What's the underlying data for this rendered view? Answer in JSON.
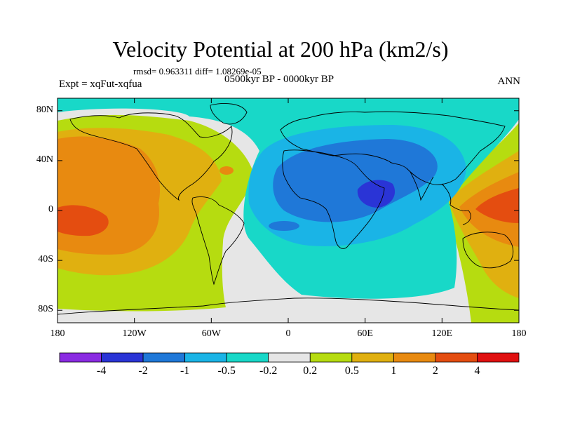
{
  "title": "Velocity Potential at 200 hPa (km2/s)",
  "stats_line": "rmsd= 0.963311 diff= 1.08269e-05",
  "experiment": "Expt = xqFut-xqfua",
  "period": "0500kyr BP - 0000kyr BP",
  "season": "ANN",
  "map": {
    "projection": "cylindrical-equidistant",
    "lon_range": [
      -180,
      180
    ],
    "lat_range": [
      -90,
      90
    ],
    "lat_ticks": [
      {
        "label": "80N",
        "lat": 80
      },
      {
        "label": "40N",
        "lat": 40
      },
      {
        "label": "0",
        "lat": 0
      },
      {
        "label": "40S",
        "lat": -40
      },
      {
        "label": "80S",
        "lat": -80
      }
    ],
    "lon_ticks": [
      {
        "label": "180",
        "lon": -180
      },
      {
        "label": "120W",
        "lon": -120
      },
      {
        "label": "60W",
        "lon": -60
      },
      {
        "label": "0",
        "lon": 0
      },
      {
        "label": "60E",
        "lon": 60
      },
      {
        "label": "120E",
        "lon": 120
      },
      {
        "label": "180",
        "lon": 180
      }
    ]
  },
  "colorbar": {
    "colors": [
      "#8a2be2",
      "#2a34d6",
      "#1f78d8",
      "#1ab4e6",
      "#18d8c8",
      "#e6e6e6",
      "#b6dc10",
      "#e0b010",
      "#e88a10",
      "#e44d10",
      "#e01010"
    ],
    "labels": [
      "-4",
      "-2",
      "-1",
      "-0.5",
      "-0.2",
      "0.2",
      "0.5",
      "1",
      "2",
      "4"
    ]
  }
}
